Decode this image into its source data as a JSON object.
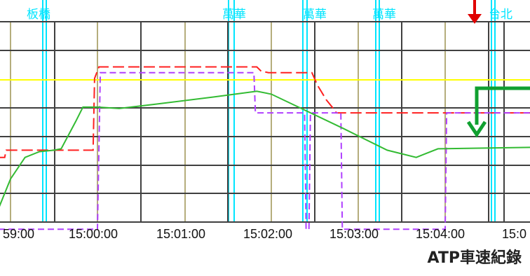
{
  "chart_data": {
    "type": "line",
    "caption": "ATP車速紀錄",
    "x_ticks": [
      "59:00",
      "15:00:00",
      "15:01:00",
      "15:02:00",
      "15:03:00",
      "15:04:00",
      "15:0"
    ],
    "station_labels": [
      "板橋",
      "萬華",
      "萬華",
      "萬華",
      "台北"
    ],
    "grid": true,
    "colors": {
      "background": "#ffffff",
      "grid_dark": "#404040",
      "grid_olive": "#b5ad7c",
      "station_line": "#00e5ff",
      "reference_line": "#ffff00",
      "speed_limit": "#ff2020",
      "target_speed": "#b040ff",
      "train_speed": "#33bb33",
      "annotation_arrow_red": "#e00000",
      "annotation_arrow_green": "#10a030"
    },
    "series": [
      {
        "style": "dashed",
        "color": "#ff2020",
        "points": [
          [
            -75,
            38
          ],
          [
            -71,
            38
          ],
          [
            -69,
            45
          ],
          [
            -64,
            45
          ],
          [
            -63,
            50
          ],
          [
            -40,
            50
          ],
          [
            -3,
            50
          ],
          [
            -2,
            100
          ],
          [
            1,
            108
          ],
          [
            40,
            108
          ],
          [
            110,
            108
          ],
          [
            113,
            105
          ],
          [
            118,
            104
          ],
          [
            130,
            104
          ],
          [
            148,
            104
          ],
          [
            152,
            95
          ],
          [
            158,
            85
          ],
          [
            162,
            80
          ],
          [
            165,
            76
          ],
          [
            220,
            76
          ],
          [
            300,
            76
          ],
          [
            308,
            76
          ],
          [
            309,
            109
          ],
          [
            321,
            109
          ],
          [
            325,
            106
          ],
          [
            330,
            95
          ],
          [
            335,
            92
          ],
          [
            338,
            86
          ],
          [
            341,
            84
          ],
          [
            345,
            80
          ],
          [
            350,
            76
          ],
          [
            357,
            75
          ]
        ]
      },
      {
        "style": "dashed",
        "color": "#b040ff",
        "points": [
          [
            -75,
            -5
          ],
          [
            -2,
            -5
          ],
          [
            0,
            -5
          ],
          [
            2,
            104
          ],
          [
            108,
            104
          ],
          [
            109,
            76
          ],
          [
            143,
            76
          ],
          [
            144,
            -5
          ],
          [
            146,
            -5
          ],
          [
            147,
            76
          ],
          [
            168,
            76
          ],
          [
            169,
            -5
          ],
          [
            240,
            -5
          ],
          [
            241,
            76
          ],
          [
            300,
            76
          ],
          [
            320,
            76
          ],
          [
            321,
            58
          ],
          [
            357,
            58
          ]
        ]
      },
      {
        "style": "solid",
        "color": "#33bb33",
        "points": [
          [
            -75,
            5
          ],
          [
            -70,
            5
          ],
          [
            -60,
            30
          ],
          [
            -50,
            45
          ],
          [
            -40,
            49
          ],
          [
            -30,
            50
          ],
          [
            -25,
            51
          ],
          [
            -15,
            70
          ],
          [
            -10,
            80
          ],
          [
            0,
            80
          ],
          [
            15,
            79
          ],
          [
            40,
            82
          ],
          [
            80,
            87
          ],
          [
            110,
            91
          ],
          [
            120,
            89
          ],
          [
            170,
            65
          ],
          [
            200,
            50
          ],
          [
            220,
            45
          ],
          [
            225,
            47
          ],
          [
            235,
            51
          ],
          [
            300,
            52
          ],
          [
            315,
            51
          ],
          [
            322,
            50
          ],
          [
            329,
            46
          ],
          [
            340,
            45
          ],
          [
            357,
            45
          ]
        ]
      }
    ]
  }
}
